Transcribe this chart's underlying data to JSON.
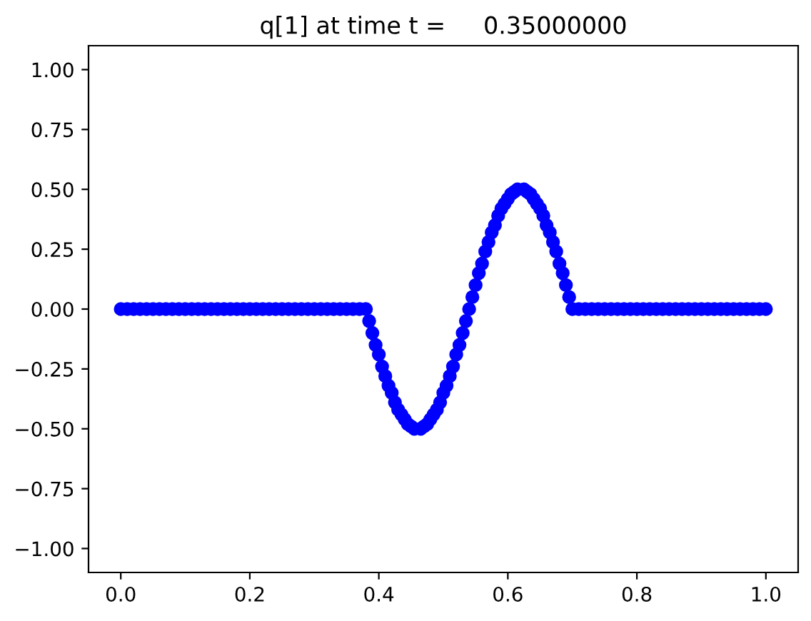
{
  "chart_data": {
    "type": "scatter",
    "title": "q[1] at time t =     0.35000000",
    "xlim": [
      -0.05,
      1.05
    ],
    "ylim": [
      -1.1,
      1.1
    ],
    "xticks": [
      {
        "value": 0,
        "label": "0.0"
      },
      {
        "value": 0.2,
        "label": "0.2"
      },
      {
        "value": 0.4,
        "label": "0.4"
      },
      {
        "value": 0.6,
        "label": "0.6"
      },
      {
        "value": 0.8,
        "label": "0.8"
      },
      {
        "value": 1.0,
        "label": "1.0"
      }
    ],
    "yticks": [
      {
        "value": -1.0,
        "label": "−1.00"
      },
      {
        "value": -0.75,
        "label": "−0.75"
      },
      {
        "value": -0.5,
        "label": "−0.50"
      },
      {
        "value": -0.25,
        "label": "−0.25"
      },
      {
        "value": 0,
        "label": "0.00"
      },
      {
        "value": 0.25,
        "label": "0.25"
      },
      {
        "value": 0.5,
        "label": "0.50"
      },
      {
        "value": 0.75,
        "label": "0.75"
      },
      {
        "value": 1.0,
        "label": "1.00"
      }
    ],
    "grid": false,
    "marker": "circle",
    "series": [
      {
        "color": "#0000ff",
        "x": [
          0,
          0.01,
          0.02,
          0.03,
          0.04,
          0.05,
          0.06,
          0.07,
          0.08,
          0.09,
          0.1,
          0.11,
          0.12,
          0.13,
          0.14,
          0.15,
          0.16,
          0.17,
          0.18,
          0.19,
          0.2,
          0.21,
          0.22,
          0.23,
          0.24,
          0.25,
          0.26,
          0.27,
          0.28,
          0.29,
          0.3,
          0.31,
          0.32,
          0.33,
          0.34,
          0.35,
          0.36,
          0.37,
          0.38,
          0.385,
          0.39,
          0.395,
          0.4,
          0.405,
          0.41,
          0.415,
          0.42,
          0.425,
          0.43,
          0.435,
          0.44,
          0.445,
          0.45,
          0.455,
          0.465,
          0.47,
          0.475,
          0.48,
          0.485,
          0.49,
          0.495,
          0.5,
          0.505,
          0.51,
          0.515,
          0.52,
          0.525,
          0.53,
          0.535,
          0.54,
          0.545,
          0.55,
          0.555,
          0.56,
          0.565,
          0.57,
          0.575,
          0.58,
          0.585,
          0.59,
          0.595,
          0.6,
          0.605,
          0.61,
          0.615,
          0.625,
          0.63,
          0.635,
          0.64,
          0.645,
          0.65,
          0.655,
          0.66,
          0.665,
          0.67,
          0.675,
          0.68,
          0.685,
          0.69,
          0.695,
          0.7,
          0.71,
          0.72,
          0.73,
          0.74,
          0.75,
          0.76,
          0.77,
          0.78,
          0.79,
          0.8,
          0.81,
          0.82,
          0.83,
          0.84,
          0.85,
          0.86,
          0.87,
          0.88,
          0.89,
          0.9,
          0.91,
          0.92,
          0.93,
          0.94,
          0.95,
          0.96,
          0.97,
          0.98,
          0.99,
          1.0
        ],
        "values": [
          0,
          0,
          0,
          0,
          0,
          0,
          0,
          0,
          0,
          0,
          0,
          0,
          0,
          0,
          0,
          0,
          0,
          0,
          0,
          0,
          0,
          0,
          0,
          0,
          0,
          0,
          0,
          0,
          0,
          0,
          0,
          0,
          0,
          0,
          0,
          0,
          0,
          0,
          0,
          -0.05,
          -0.1,
          -0.15,
          -0.19,
          -0.24,
          -0.28,
          -0.32,
          -0.35,
          -0.39,
          -0.42,
          -0.44,
          -0.46,
          -0.48,
          -0.49,
          -0.5,
          -0.5,
          -0.49,
          -0.48,
          -0.46,
          -0.44,
          -0.42,
          -0.39,
          -0.35,
          -0.32,
          -0.28,
          -0.24,
          -0.19,
          -0.15,
          -0.1,
          -0.05,
          0,
          0.05,
          0.1,
          0.15,
          0.19,
          0.24,
          0.28,
          0.32,
          0.35,
          0.39,
          0.42,
          0.44,
          0.46,
          0.48,
          0.49,
          0.5,
          0.5,
          0.49,
          0.48,
          0.46,
          0.44,
          0.42,
          0.39,
          0.35,
          0.32,
          0.28,
          0.24,
          0.19,
          0.15,
          0.1,
          0.05,
          0,
          0,
          0,
          0,
          0,
          0,
          0,
          0,
          0,
          0,
          0,
          0,
          0,
          0,
          0,
          0,
          0,
          0,
          0,
          0,
          0,
          0,
          0,
          0,
          0,
          0,
          0,
          0,
          0,
          0,
          0
        ]
      }
    ]
  }
}
